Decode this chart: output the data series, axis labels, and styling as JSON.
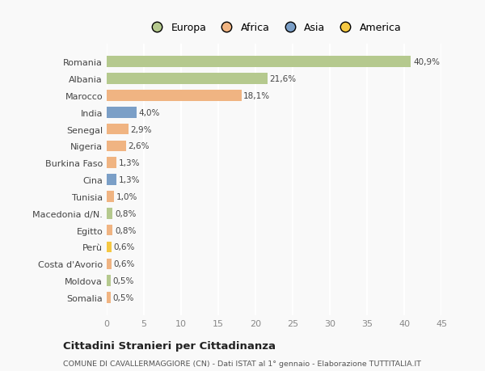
{
  "countries": [
    "Romania",
    "Albania",
    "Marocco",
    "India",
    "Senegal",
    "Nigeria",
    "Burkina Faso",
    "Cina",
    "Tunisia",
    "Macedonia d/N.",
    "Egitto",
    "Perù",
    "Costa d'Avorio",
    "Moldova",
    "Somalia"
  ],
  "values": [
    40.9,
    21.6,
    18.1,
    4.0,
    2.9,
    2.6,
    1.3,
    1.3,
    1.0,
    0.8,
    0.8,
    0.6,
    0.6,
    0.5,
    0.5
  ],
  "labels": [
    "40,9%",
    "21,6%",
    "18,1%",
    "4,0%",
    "2,9%",
    "2,6%",
    "1,3%",
    "1,3%",
    "1,0%",
    "0,8%",
    "0,8%",
    "0,6%",
    "0,6%",
    "0,5%",
    "0,5%"
  ],
  "colors": [
    "#b5c98e",
    "#b5c98e",
    "#f0b482",
    "#7b9fc7",
    "#f0b482",
    "#f0b482",
    "#f0b482",
    "#7b9fc7",
    "#f0b482",
    "#b5c98e",
    "#f0b482",
    "#f5c842",
    "#f0b482",
    "#b5c98e",
    "#f0b482"
  ],
  "legend_labels": [
    "Europa",
    "Africa",
    "Asia",
    "America"
  ],
  "legend_colors": [
    "#b5c98e",
    "#f0b482",
    "#7b9fc7",
    "#f5c842"
  ],
  "title": "Cittadini Stranieri per Cittadinanza",
  "subtitle": "COMUNE DI CAVALLERMAGGIORE (CN) - Dati ISTAT al 1° gennaio - Elaborazione TUTTITALIA.IT",
  "xlim": [
    0,
    45
  ],
  "xticks": [
    0,
    5,
    10,
    15,
    20,
    25,
    30,
    35,
    40,
    45
  ],
  "background_color": "#f9f9f9",
  "grid_color": "#ffffff",
  "bar_height": 0.65
}
